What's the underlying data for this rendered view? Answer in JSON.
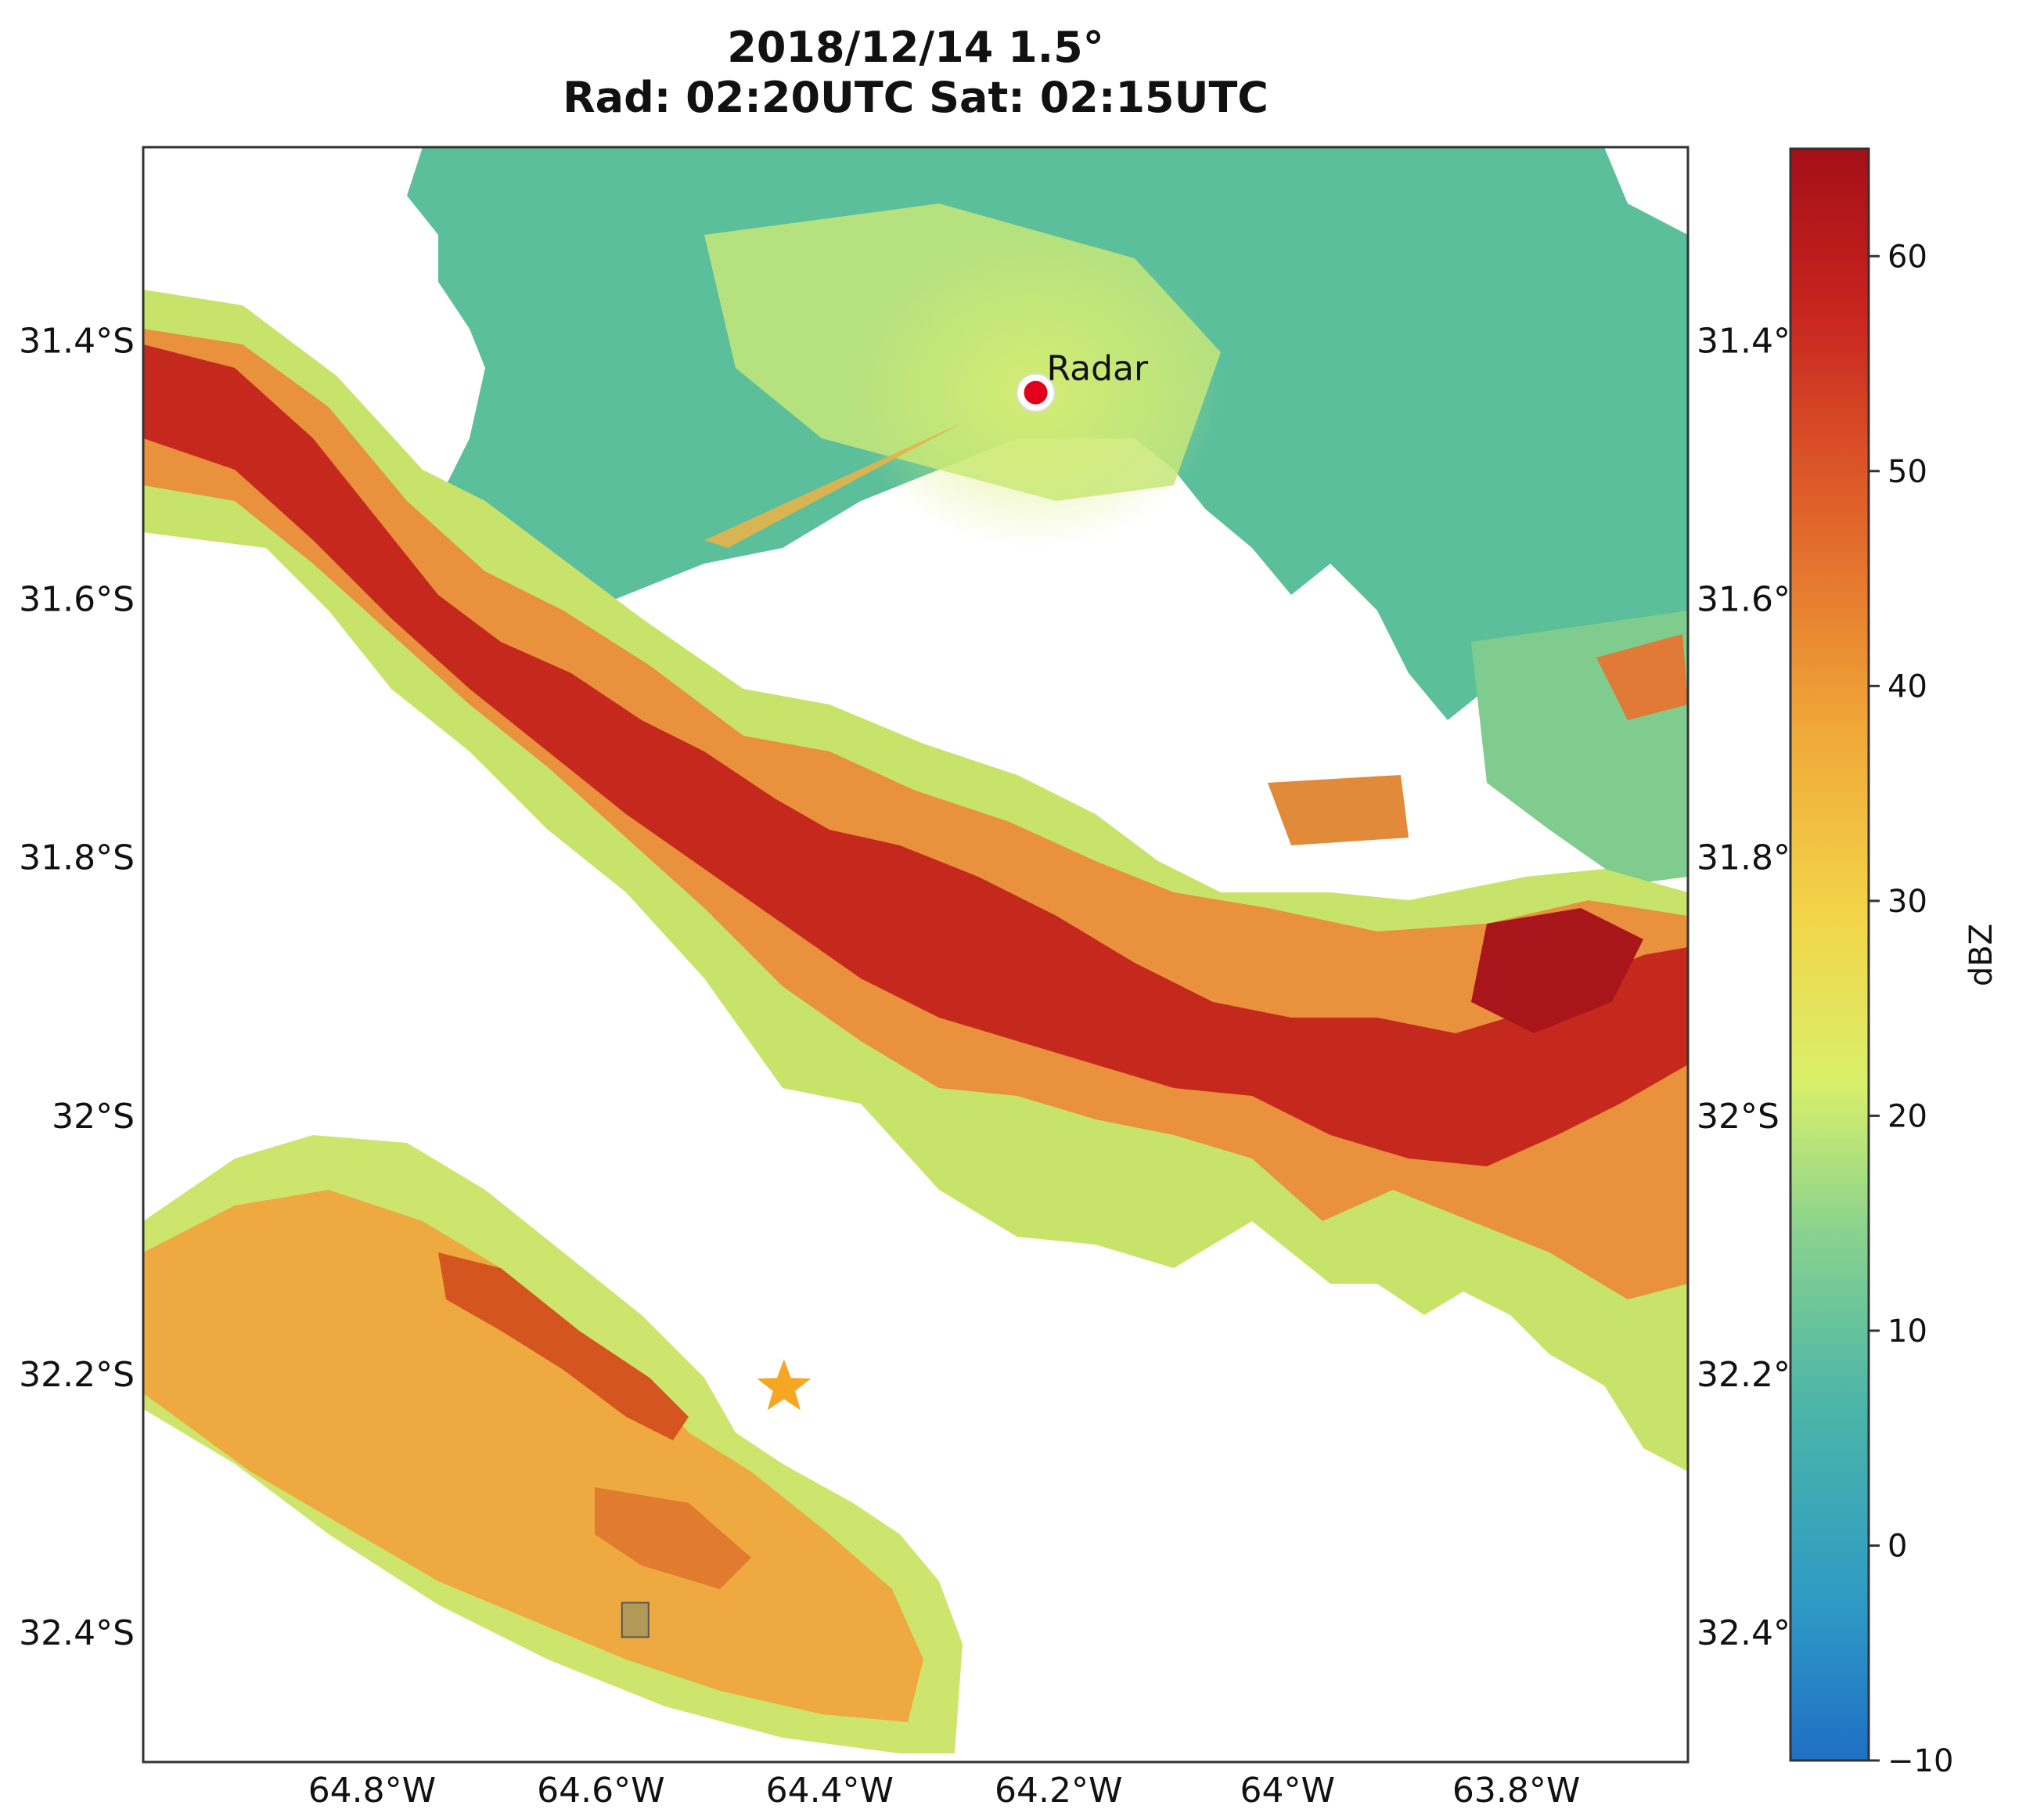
{
  "title": {
    "line1": "2018/12/14  1.5°",
    "line2": "Rad: 02:20UTC Sat: 02:15UTC"
  },
  "map": {
    "lon_range": [
      -65.0,
      -63.65
    ],
    "lat_range": [
      -32.5,
      -31.25
    ],
    "lat_ticks": [
      {
        "value": -31.4,
        "left": "31.4°S",
        "right": "31.4°"
      },
      {
        "value": -31.6,
        "left": "31.6°S",
        "right": "31.6°"
      },
      {
        "value": -31.8,
        "left": "31.8°S",
        "right": "31.8°"
      },
      {
        "value": -32.0,
        "left": "32°S",
        "right": "32°S"
      },
      {
        "value": -32.2,
        "left": "32.2°S",
        "right": "32.2°"
      },
      {
        "value": -32.4,
        "left": "32.4°S",
        "right": "32.4°"
      }
    ],
    "lon_ticks": [
      {
        "value": -64.8,
        "label": "64.8°W"
      },
      {
        "value": -64.6,
        "label": "64.6°W"
      },
      {
        "value": -64.4,
        "label": "64.4°W"
      },
      {
        "value": -64.2,
        "label": "64.2°W"
      },
      {
        "value": -64.0,
        "label": "64°W"
      },
      {
        "value": -63.8,
        "label": "63.8°W"
      }
    ],
    "radar": {
      "lon": -64.22,
      "lat": -31.44,
      "label": "Radar",
      "color": "#e3001b"
    },
    "star_marker": {
      "lon": -64.44,
      "lat": -32.21,
      "color": "#f5a623"
    },
    "square_marker": {
      "lon": -64.57,
      "lat": -32.39,
      "color": "#a8975c"
    }
  },
  "colorbar": {
    "label": "dBZ",
    "min": -10,
    "max": 65,
    "ticks": [
      -10,
      0,
      10,
      20,
      30,
      40,
      50,
      60
    ],
    "tick_labels": [
      "−10",
      "0",
      "10",
      "20",
      "30",
      "40",
      "50",
      "60"
    ]
  }
}
